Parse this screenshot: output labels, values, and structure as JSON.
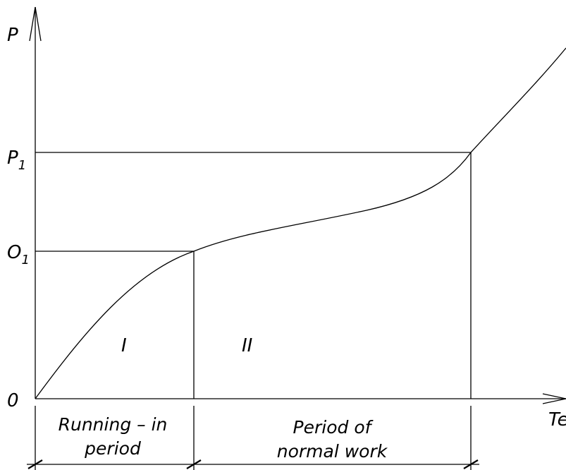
{
  "axes": {
    "y_label": "P",
    "x_label": "Te",
    "origin_label": "0",
    "y_ticks": [
      {
        "id": "o1",
        "main": "O",
        "sub": "1"
      },
      {
        "id": "p1",
        "main": "P",
        "sub": "1"
      }
    ]
  },
  "regions": {
    "first": "I",
    "second": "II"
  },
  "periods": {
    "running_in": {
      "line1": "Running – in",
      "line2": "period"
    },
    "normal_work": {
      "line1": "Period of",
      "line2": "normal work"
    }
  }
}
